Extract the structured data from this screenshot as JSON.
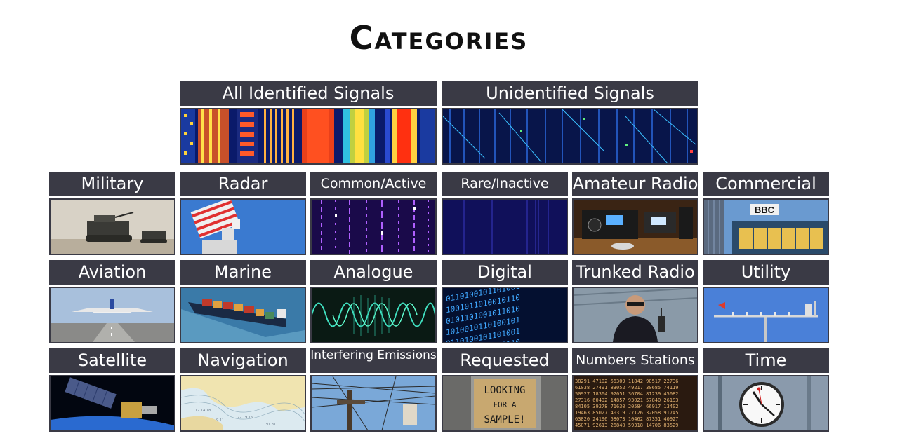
{
  "page": {
    "title": "Categories"
  },
  "top": [
    {
      "label": "All Identified Signals",
      "icon": "spectrum-waterfall-color-icon"
    },
    {
      "label": "Unidentified Signals",
      "icon": "spectrum-waterfall-blue-icon"
    }
  ],
  "grid": [
    {
      "label": "Military",
      "icon": "armored-vehicles-icon"
    },
    {
      "label": "Radar",
      "icon": "radar-antenna-icon"
    },
    {
      "label": "Common/Active",
      "icon": "waterfall-purple-icon"
    },
    {
      "label": "Rare/Inactive",
      "icon": "waterfall-dark-blue-icon"
    },
    {
      "label": "Amateur Radio",
      "icon": "radio-transceiver-icon"
    },
    {
      "label": "Commercial",
      "icon": "bbc-building-icon"
    },
    {
      "label": "Aviation",
      "icon": "airplane-takeoff-icon"
    },
    {
      "label": "Marine",
      "icon": "container-ship-icon"
    },
    {
      "label": "Analogue",
      "icon": "analog-waveform-icon"
    },
    {
      "label": "Digital",
      "icon": "binary-digits-icon"
    },
    {
      "label": "Trunked Radio",
      "icon": "officer-radio-icon"
    },
    {
      "label": "Utility",
      "icon": "weather-antenna-icon"
    },
    {
      "label": "Satellite",
      "icon": "satellite-icon"
    },
    {
      "label": "Navigation",
      "icon": "nautical-chart-icon"
    },
    {
      "label": "Interfering Emissions",
      "icon": "power-lines-icon"
    },
    {
      "label": "Requested",
      "icon": "looking-for-sample-sign-icon"
    },
    {
      "label": "Numbers Stations",
      "icon": "numbers-grid-icon"
    },
    {
      "label": "Time",
      "icon": "station-clock-icon"
    }
  ],
  "thumbs": {
    "requested_sign": [
      "LOOKING",
      "FOR A",
      "SAMPLE!"
    ],
    "commercial_sign": "BBC"
  }
}
